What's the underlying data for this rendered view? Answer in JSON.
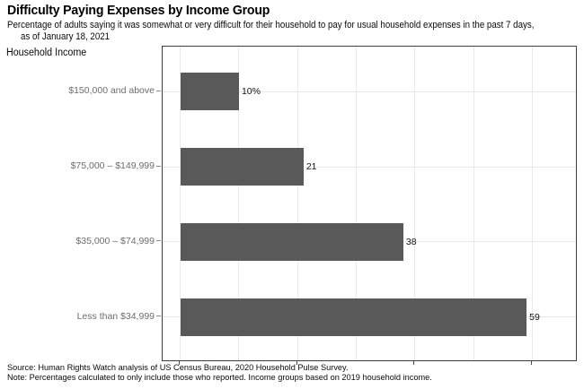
{
  "header": {
    "title": "Difficulty Paying Expenses by Income Group",
    "subtitle_line1": "Percentage of adults saying it was somewhat or very difficult for their household to pay for usual household expenses in the past 7 days,",
    "subtitle_line2": "as of January 18, 2021"
  },
  "chart_data": {
    "type": "bar",
    "orientation": "horizontal",
    "title": "Difficulty Paying Expenses by Income Group",
    "subtitle": "Percentage of adults saying it was somewhat or very difficult for their household to pay for usual household expenses in the past 7 days, as of January 18, 2021",
    "ylabel": "Household Income",
    "xlabel": "",
    "categories": [
      "$150,000 and above",
      "$75,000 – $149,999",
      "$35,000 – $74,999",
      "Less than $34,999"
    ],
    "values": [
      10,
      21,
      38,
      59
    ],
    "value_labels": [
      "10%",
      "21",
      "38",
      "59"
    ],
    "xlim": [
      -3,
      67.7
    ],
    "x_gridlines": [
      0,
      10,
      20,
      30,
      40,
      50,
      60
    ],
    "x_ticks": [
      0,
      20,
      40,
      60
    ],
    "grid": true,
    "legend": "none",
    "bar_color": "#595959",
    "gridline_color": "#e9e9e9"
  },
  "footer": {
    "source": "Source: Human Rights Watch analysis of US Census Bureau, 2020 Household Pulse Survey.",
    "note": "Note: Percentages calculated to only include those who reported. Income groups based on 2019 household income."
  }
}
